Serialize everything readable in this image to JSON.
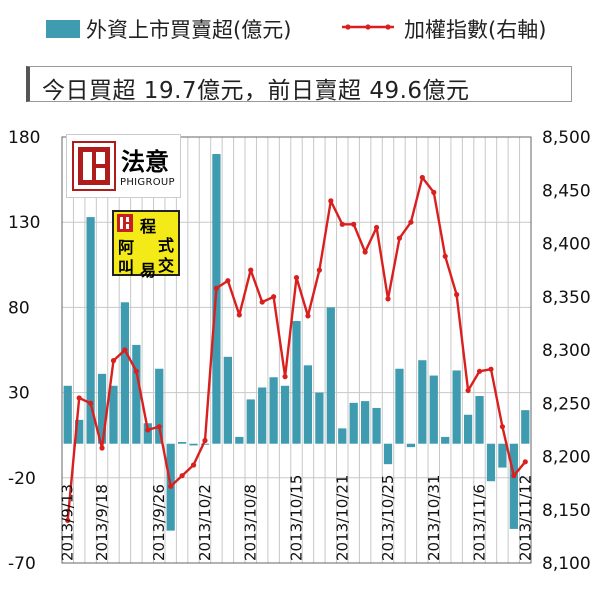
{
  "legend": {
    "bar_label": "外資上市買賣超(億元)",
    "line_label": "加權指數(右軸)",
    "bar_color": "#3f9bb0",
    "line_color": "#d9201f"
  },
  "summary": {
    "text": "今日買超 19.7億元，前日賣超 49.6億元"
  },
  "logos": {
    "phigroup_zh": "法意",
    "phigroup_en": "PHIGROUP",
    "badge_chars": [
      "程",
      "阿",
      "式",
      "叫",
      "交",
      "易"
    ]
  },
  "chart_data": {
    "type": "bar+line",
    "left_axis": {
      "ylim": [
        -70,
        180
      ],
      "ticks": [
        "180",
        "130",
        "80",
        "30",
        "-20",
        "-70"
      ]
    },
    "right_axis": {
      "ylim": [
        8100,
        8500
      ],
      "ticks": [
        "8,500",
        "8,450",
        "8,400",
        "8,350",
        "8,300",
        "8,250",
        "8,200",
        "8,150",
        "8,100"
      ]
    },
    "x_tick_labels": [
      "2013/9/13",
      "2013/9/18",
      "2013/9/26",
      "2013/10/2",
      "2013/10/8",
      "2013/10/15",
      "2013/10/21",
      "2013/10/25",
      "2013/10/31",
      "2013/11/6",
      "2013/11/12"
    ],
    "x_tick_indices": [
      0,
      3,
      8,
      12,
      16,
      20,
      24,
      28,
      32,
      36,
      40
    ],
    "series": [
      {
        "name": "外資上市買賣超(億元)",
        "type": "bar",
        "axis": "left",
        "values": [
          34,
          14,
          133,
          41,
          34,
          83,
          58,
          12,
          44,
          -51,
          1,
          -1,
          0,
          170,
          51,
          4,
          26,
          33,
          39,
          34,
          72,
          46,
          30,
          80,
          9,
          24,
          25,
          21,
          -12,
          44,
          -2,
          49,
          40,
          4,
          43,
          17,
          28,
          -22,
          -14,
          -50,
          19.7
        ]
      },
      {
        "name": "加權指數(右軸)",
        "type": "line",
        "axis": "right",
        "values": [
          8140,
          8255,
          8250,
          8208,
          8290,
          8300,
          8280,
          8225,
          8228,
          8172,
          8182,
          8192,
          8215,
          8358,
          8365,
          8333,
          8375,
          8345,
          8350,
          8275,
          8368,
          8332,
          8375,
          8440,
          8418,
          8418,
          8392,
          8415,
          8348,
          8405,
          8420,
          8462,
          8448,
          8388,
          8352,
          8262,
          8280,
          8282,
          8228,
          8182,
          8195
        ]
      }
    ]
  }
}
